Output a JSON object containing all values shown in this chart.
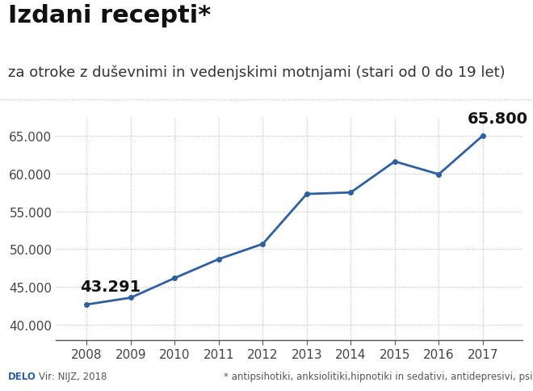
{
  "title": "Izdani recepti*",
  "subtitle": "za otroke z duševnimi in vedenjskimi motnjami (stari od 0 do 19 let)",
  "years": [
    2008,
    2009,
    2010,
    2011,
    2012,
    2013,
    2014,
    2015,
    2016,
    2017
  ],
  "values": [
    42700,
    43600,
    46200,
    48700,
    50700,
    57300,
    57500,
    61600,
    59900,
    65000
  ],
  "line_color": "#2E5F9E",
  "marker_color": "#2E5F9E",
  "bg_color": "#FFFFFF",
  "grid_color": "#BBBBBB",
  "yticks": [
    40000,
    45000,
    50000,
    55000,
    60000,
    65000
  ],
  "ylim": [
    38000,
    67500
  ],
  "xlim": [
    2007.3,
    2017.9
  ],
  "label_start": "43.291",
  "label_end": "65.800",
  "footer_left_bold": "DELO",
  "footer_left": "Vir: NIJZ, 2018",
  "footer_right": "* antipsihotiki, anksiolitiki,hipnotiki in sedativi, antidepresivi, psihostimulansi",
  "title_fontsize": 22,
  "subtitle_fontsize": 13,
  "tick_fontsize": 11,
  "annotation_fontsize": 14,
  "footer_fontsize": 8.5,
  "separator_color": "#BBBBBB",
  "title_color": "#111111",
  "subtitle_color": "#333333"
}
